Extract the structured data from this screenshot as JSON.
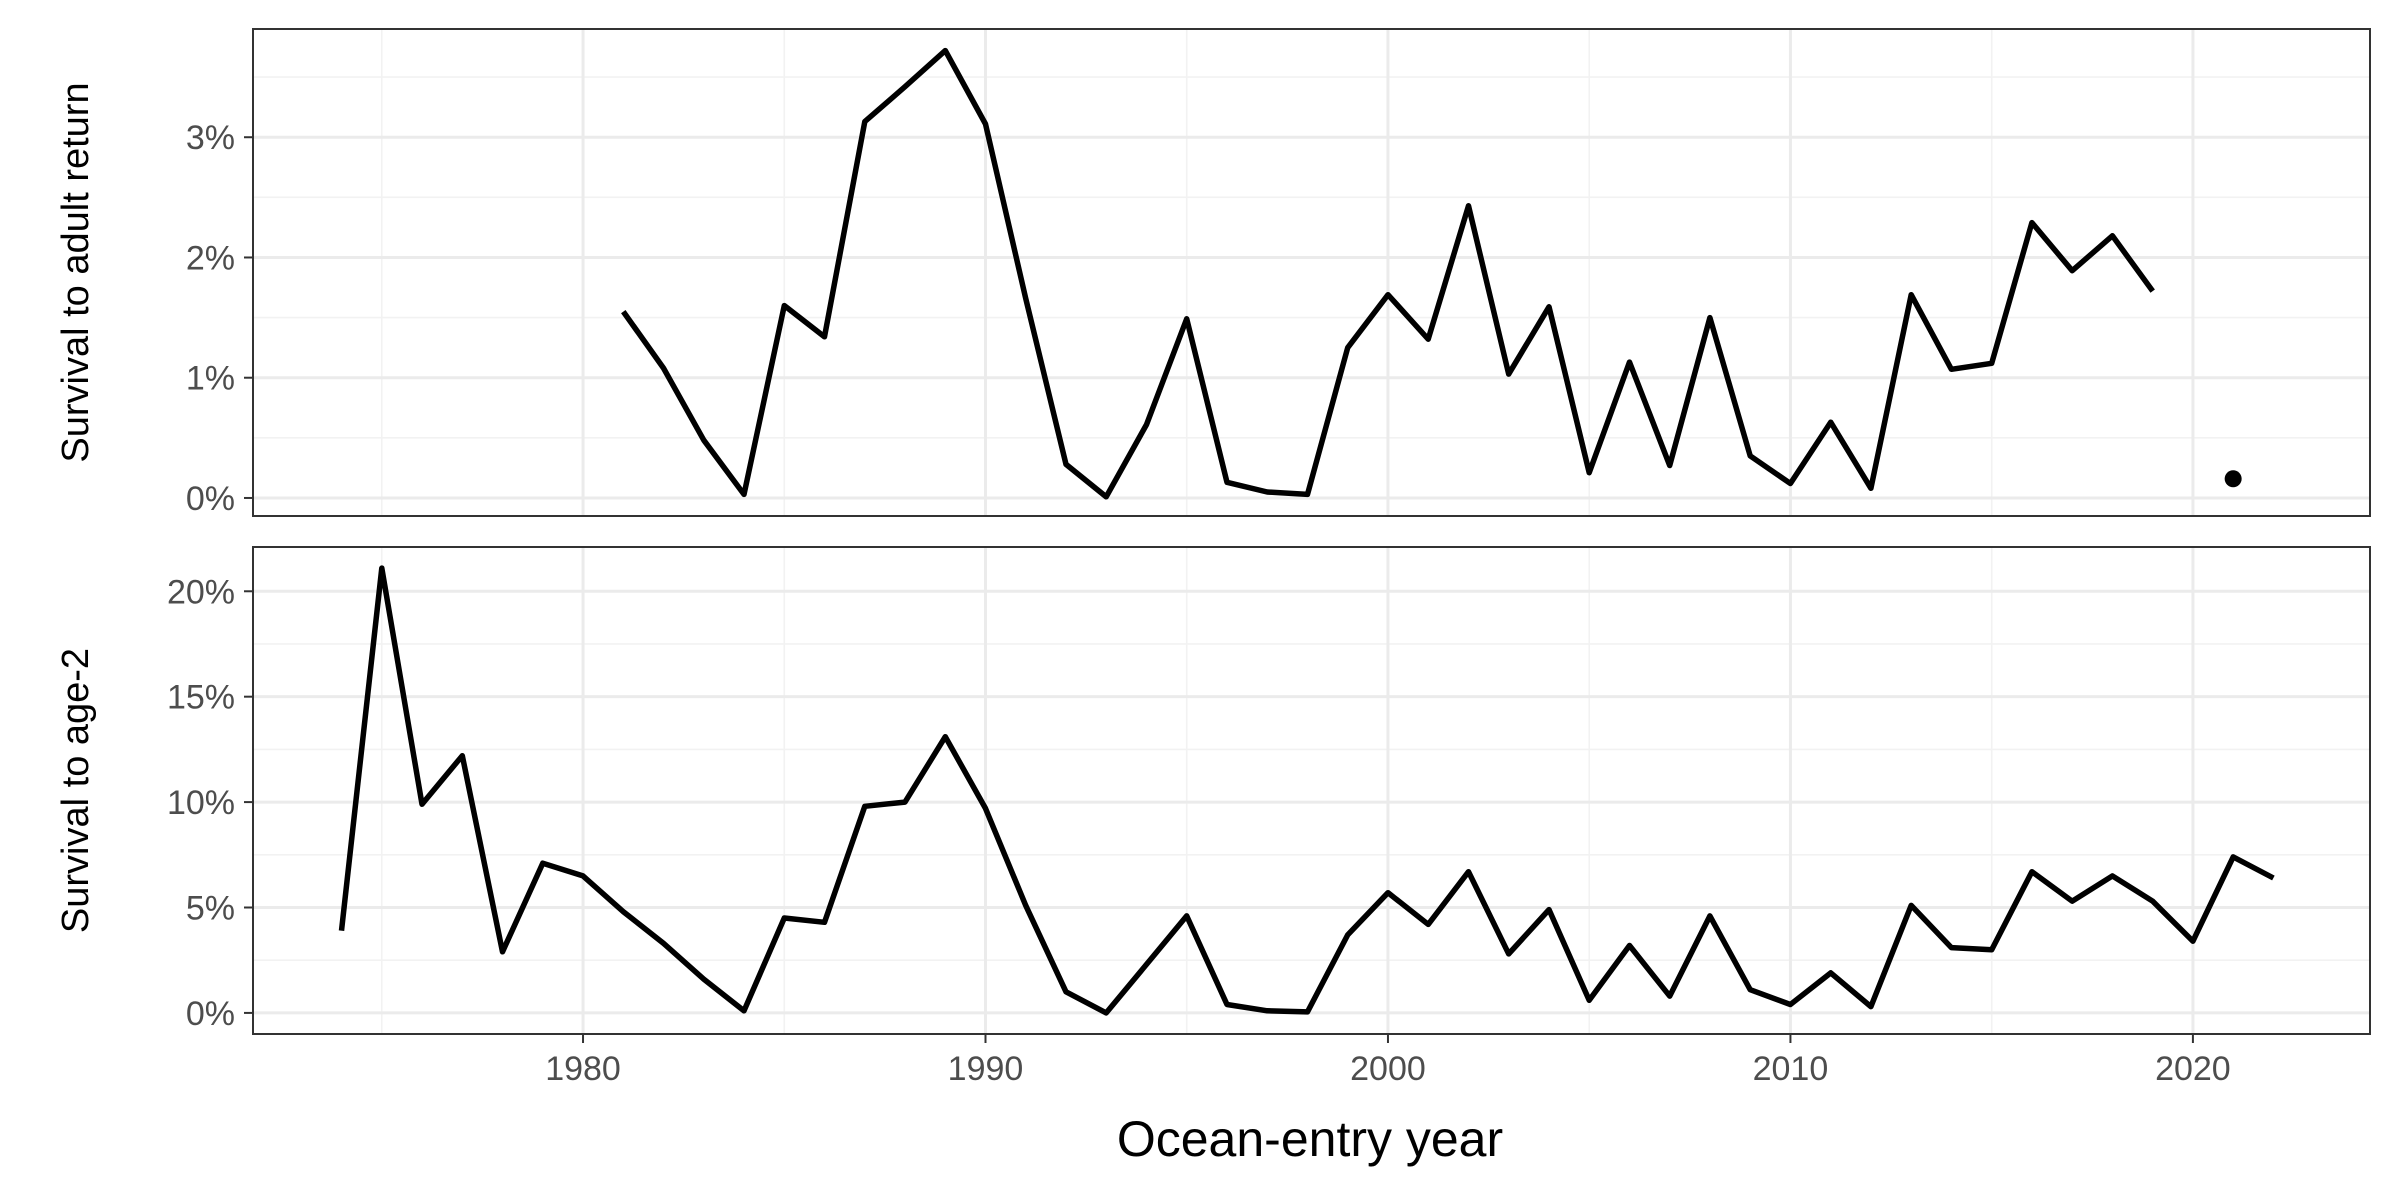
{
  "chart_data": [
    {
      "type": "line",
      "ylabel": "Survival to adult return",
      "yticks": [
        "0%",
        "1%",
        "2%",
        "3%"
      ],
      "ytick_values": [
        0,
        1,
        2,
        3
      ],
      "ylim": [
        -0.15,
        3.9
      ],
      "xlim": [
        1971.8,
        2024.4
      ],
      "grid": true,
      "series": [
        {
          "x": [
            1981,
            1982,
            1983,
            1984,
            1985,
            1986,
            1987,
            1988,
            1989,
            1990,
            1991,
            1992,
            1993,
            1994,
            1995,
            1996,
            1997,
            1998,
            1999,
            2000,
            2001,
            2002,
            2003,
            2004,
            2005,
            2006,
            2007,
            2008,
            2009,
            2010,
            2011,
            2012,
            2013,
            2014,
            2015,
            2016,
            2017,
            2018,
            2019
          ],
          "values": [
            1.55,
            1.08,
            0.48,
            0.03,
            1.6,
            1.34,
            3.13,
            3.42,
            3.72,
            3.11,
            1.66,
            0.28,
            0.01,
            0.61,
            1.49,
            0.13,
            0.05,
            0.03,
            1.25,
            1.69,
            1.32,
            2.43,
            1.03,
            1.59,
            0.21,
            1.13,
            0.27,
            1.5,
            0.35,
            0.12,
            0.63,
            0.08,
            1.69,
            1.07,
            1.12,
            2.29,
            1.89,
            2.18,
            1.72
          ]
        }
      ],
      "points": [
        {
          "x": 2021,
          "y": 0.16
        }
      ]
    },
    {
      "type": "line",
      "ylabel": "Survival to age-2",
      "yticks": [
        "0%",
        "5%",
        "10%",
        "15%",
        "20%"
      ],
      "ytick_values": [
        0,
        5,
        10,
        15,
        20
      ],
      "ylim": [
        -1.0,
        22.1
      ],
      "xlim": [
        1971.8,
        2024.4
      ],
      "grid": true,
      "series": [
        {
          "x": [
            1974,
            1975,
            1976,
            1977,
            1978,
            1979,
            1980,
            1981,
            1982,
            1983,
            1984,
            1985,
            1986,
            1987,
            1988,
            1989,
            1990,
            1991,
            1992,
            1993,
            1994,
            1995,
            1996,
            1997,
            1998,
            1999,
            2000,
            2001,
            2002,
            2003,
            2004,
            2005,
            2006,
            2007,
            2008,
            2009,
            2010,
            2011,
            2012,
            2013,
            2014,
            2015,
            2016,
            2017,
            2018,
            2019,
            2020,
            2021,
            2022
          ],
          "values": [
            3.9,
            21.1,
            9.9,
            12.2,
            2.9,
            7.1,
            6.5,
            4.8,
            3.3,
            1.6,
            0.1,
            4.5,
            4.3,
            9.8,
            10.0,
            13.1,
            9.7,
            5.1,
            1.0,
            0.0,
            2.3,
            4.6,
            0.4,
            0.1,
            0.05,
            3.7,
            5.7,
            4.2,
            6.7,
            2.8,
            4.9,
            0.6,
            3.2,
            0.8,
            4.6,
            1.1,
            0.4,
            1.9,
            0.3,
            5.1,
            3.1,
            3.0,
            6.7,
            5.3,
            6.5,
            5.3,
            3.4,
            7.4,
            6.4
          ]
        }
      ]
    }
  ],
  "x_axis": {
    "label": "Ocean-entry year",
    "tick_values": [
      1980,
      1990,
      2000,
      2010,
      2020
    ],
    "tick_labels": [
      "1980",
      "1990",
      "2000",
      "2010",
      "2020"
    ]
  },
  "colors": {
    "line": "#000000",
    "panel_border": "#333333",
    "grid_major": "#ebebeb",
    "grid_minor": "#f2f2f2",
    "tick_text": "#4d4d4d"
  }
}
